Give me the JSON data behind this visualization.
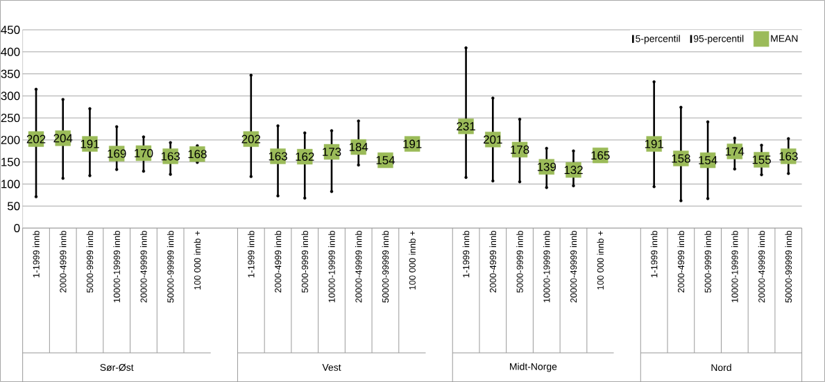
{
  "chart_data": {
    "type": "scatter",
    "categories": [
      "1-1999 innb",
      "2000-4999 innb",
      "5000-9999 innb",
      "10000-19999 innb",
      "20000-49999 innb",
      "50000-99999 innb",
      "100 000 innb +",
      null,
      "1-1999 innb",
      "2000-4999 innb",
      "5000-9999 innb",
      "10000-19999 innb",
      "20000-49999 innb",
      "50000-99999 innb",
      "100 000 innb +",
      null,
      "1-1999 innb",
      "2000-4999 innb",
      "5000-9999 innb",
      "10000-19999 innb",
      "20000-49999 innb",
      "100 000 innb +",
      null,
      "1-1999 innb",
      "2000-4999 innb",
      "5000-9999 innb",
      "10000-19999 innb",
      "20000-49999 innb",
      "50000-99999 innb"
    ],
    "annotations": [
      "Sør-Øst",
      "Vest",
      "Midt-Norge",
      "Nord"
    ],
    "series": [
      {
        "name": "5-percentil",
        "color": "#000000",
        "marker": "none",
        "values": [
          71,
          113,
          119,
          133,
          129,
          122,
          149,
          null,
          117,
          73,
          68,
          83,
          143,
          null,
          null,
          null,
          115,
          107,
          105,
          92,
          96,
          null,
          null,
          94,
          62,
          67,
          134,
          121,
          124
        ]
      },
      {
        "name": "95-percentil",
        "color": "#000000",
        "marker": "none",
        "values": [
          315,
          292,
          271,
          230,
          207,
          194,
          187,
          null,
          347,
          232,
          216,
          221,
          243,
          null,
          null,
          null,
          409,
          295,
          247,
          181,
          175,
          null,
          null,
          332,
          274,
          241,
          204,
          188,
          203
        ]
      },
      {
        "name": "MEAN",
        "color": "#9bbb59",
        "marker": "square",
        "values": [
          202,
          204,
          191,
          169,
          170,
          163,
          168,
          null,
          202,
          163,
          162,
          173,
          184,
          154,
          191,
          null,
          231,
          201,
          178,
          139,
          132,
          165,
          null,
          191,
          158,
          154,
          174,
          155,
          163
        ],
        "value_labels": [
          "202",
          "204",
          "191",
          "169",
          "170",
          "163",
          "168",
          null,
          "202",
          "163",
          "162",
          "173",
          "184",
          "154",
          "191",
          null,
          "231",
          "201",
          "178",
          "139",
          "132",
          "165",
          null,
          "191",
          "158",
          "154",
          "174",
          "155",
          "163"
        ]
      }
    ],
    "ylim": [
      0,
      450
    ],
    "yticks": [
      0,
      50,
      100,
      150,
      200,
      250,
      300,
      350,
      400,
      450
    ],
    "grid": "y",
    "legend": "top right"
  }
}
